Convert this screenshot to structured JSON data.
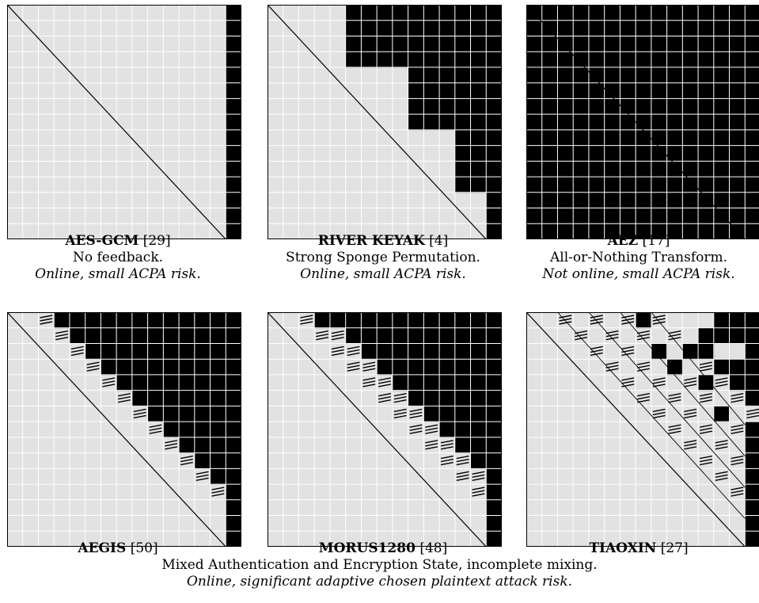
{
  "grid": {
    "background": "#e2e2e2",
    "line_color": "#ffffff",
    "cell_fill": "#000000",
    "diagonal_color": "#000000",
    "cells_per_side": 15
  },
  "panels": [
    {
      "name": "AES-GCM",
      "ref": "[29]",
      "desc": "No feedback.",
      "risk": "Online, small ACPA risk.",
      "pattern": "last-column"
    },
    {
      "name": "RIVER KEYAK",
      "ref": "[4]",
      "desc": "Strong Sponge Permutation.",
      "risk": "Online, small ACPA risk.",
      "pattern": "staircase-blocks"
    },
    {
      "name": "AEZ",
      "ref": "[17]",
      "desc": "All-or-Nothing Transform.",
      "risk": "Not online, small ACPA risk.",
      "pattern": "all-filled"
    },
    {
      "name": "AEGIS",
      "ref": "[50]",
      "pattern": "band-offset-2"
    },
    {
      "name": "MORUS1280",
      "ref": "[48]",
      "pattern": "band-with-triangles"
    },
    {
      "name": "TIAOXIN",
      "ref": "[27]",
      "pattern": "scattered-diagonals"
    }
  ],
  "bottom_caption": {
    "line1": "Mixed Authentication and Encryption State, incomplete mixing.",
    "line2": "Online, significant adaptive chosen plaintext attack risk."
  }
}
